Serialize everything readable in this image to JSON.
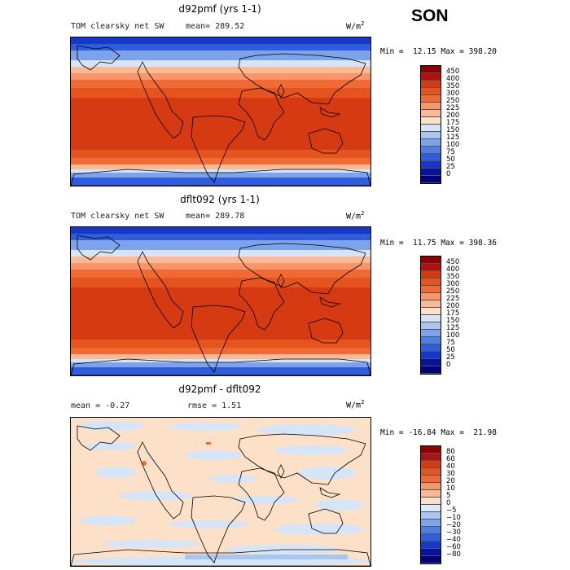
{
  "season": "SON",
  "panels": [
    {
      "title": "d92pmf (yrs 1-1)",
      "variable": "TOM clearsky net SW",
      "mean_text": "mean= 289.52",
      "rmse_text": "",
      "units": "W/m",
      "units_exp": "2",
      "minmax": "Min =  12.15 Max = 398.20",
      "field": "absolute",
      "colorbar": {
        "labels": [
          "450",
          "400",
          "350",
          "300",
          "250",
          "225",
          "200",
          "175",
          "150",
          "125",
          "100",
          "75",
          "50",
          "25",
          "0"
        ],
        "colors": [
          "#8b0000",
          "#b01010",
          "#d63a12",
          "#e5531f",
          "#f06a35",
          "#f8956a",
          "#fbb995",
          "#fde0c8",
          "#d6e4f7",
          "#a8c6f0",
          "#7da3ea",
          "#4f7fe3",
          "#2f5ddc",
          "#1538c8",
          "#07139e",
          "#000078"
        ]
      }
    },
    {
      "title": "dflt092 (yrs 1-1)",
      "variable": "TOM clearsky net SW",
      "mean_text": "mean= 289.78",
      "rmse_text": "",
      "units": "W/m",
      "units_exp": "2",
      "minmax": "Min =  11.75 Max = 398.36",
      "field": "absolute",
      "colorbar": {
        "labels": [
          "450",
          "400",
          "350",
          "300",
          "250",
          "225",
          "200",
          "175",
          "150",
          "125",
          "100",
          "75",
          "50",
          "25",
          "0"
        ],
        "colors": [
          "#8b0000",
          "#b01010",
          "#d63a12",
          "#e5531f",
          "#f06a35",
          "#f8956a",
          "#fbb995",
          "#fde0c8",
          "#d6e4f7",
          "#a8c6f0",
          "#7da3ea",
          "#4f7fe3",
          "#2f5ddc",
          "#1538c8",
          "#07139e",
          "#000078"
        ]
      }
    },
    {
      "title": "d92pmf - dflt092",
      "variable": "",
      "mean_text": "mean =   -0.27",
      "rmse_text": "rmse =    1.51",
      "units": "W/m",
      "units_exp": "2",
      "minmax": "Min = -16.84 Max =  21.98",
      "field": "difference",
      "colorbar": {
        "labels": [
          "80",
          "60",
          "40",
          "30",
          "20",
          "10",
          "5",
          "0",
          "−5",
          "−10",
          "−20",
          "−30",
          "−40",
          "−60",
          "−80"
        ],
        "colors": [
          "#8b0000",
          "#b01010",
          "#d63a12",
          "#e5531f",
          "#f06a35",
          "#f8956a",
          "#fbb995",
          "#fde0c8",
          "#dce9fb",
          "#a8c6f0",
          "#7da3ea",
          "#4f7fe3",
          "#2f5ddc",
          "#1538c8",
          "#07139e",
          "#000078"
        ]
      }
    }
  ]
}
